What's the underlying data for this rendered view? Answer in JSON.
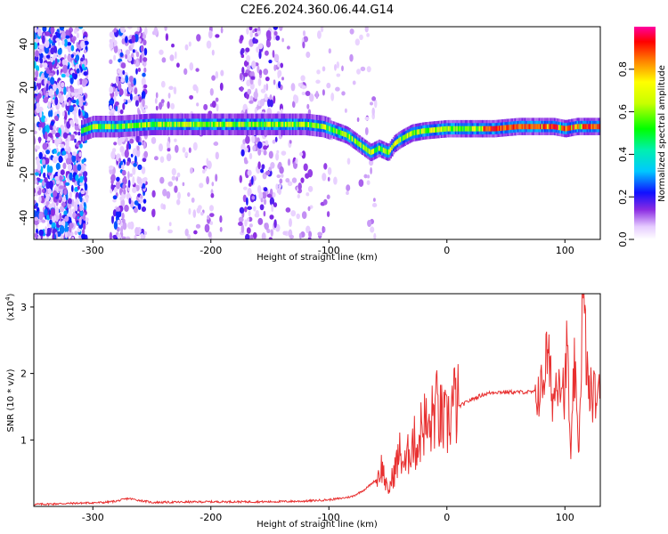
{
  "chart_data": [
    {
      "type": "heatmap",
      "title": "C2E6.2024.360.06.44.G14",
      "xlabel": "Height of straight line (km)",
      "ylabel": "Frequency (Hz)",
      "xlim": [
        -350,
        130
      ],
      "ylim": [
        -50,
        48
      ],
      "xticks": [
        -300,
        -200,
        -100,
        0,
        100
      ],
      "yticks": [
        40,
        20,
        0,
        -20,
        -40
      ],
      "xtick_labels": [
        "-300",
        "-200",
        "-100",
        "0",
        "100"
      ],
      "ytick_labels": [
        "40",
        "20",
        "0",
        "-20",
        "-40"
      ],
      "colorbar": {
        "label": "Normalized spectral amplitude",
        "range": [
          0,
          1
        ],
        "ticks": [
          0.0,
          0.2,
          0.4,
          0.6,
          0.8
        ],
        "tick_labels": [
          "0.0",
          "0.2",
          "0.4",
          "0.6",
          "0.8"
        ]
      },
      "ridge": {
        "x": [
          -310,
          -300,
          -280,
          -250,
          -200,
          -150,
          -120,
          -105,
          -95,
          -85,
          -75,
          -65,
          -58,
          -50,
          -45,
          -40,
          -30,
          -20,
          0,
          20,
          40,
          60,
          80,
          90,
          100,
          110,
          130
        ],
        "freq": [
          0,
          2,
          2,
          3,
          3,
          3,
          3,
          2,
          0,
          -2,
          -6,
          -10,
          -8,
          -10,
          -6,
          -4,
          -1,
          0,
          1,
          1,
          1,
          2,
          2,
          2,
          1,
          2,
          2
        ]
      }
    },
    {
      "type": "line",
      "xlabel": "Height of straight line (km)",
      "ylabel": "SNR (10 * v/v)",
      "scale_label": "(x10",
      "scale_exponent": "4",
      "scale_suffix": ")",
      "color": "#e83030",
      "xlim": [
        -350,
        130
      ],
      "ylim": [
        0,
        3.2
      ],
      "xticks": [
        -300,
        -200,
        -100,
        0,
        100
      ],
      "yticks": [
        1,
        2,
        3
      ],
      "xtick_labels": [
        "-300",
        "-200",
        "-100",
        "0",
        "100"
      ],
      "ytick_labels": [
        "1",
        "2",
        "3"
      ],
      "x": [
        -350,
        -330,
        -310,
        -290,
        -280,
        -270,
        -250,
        -200,
        -150,
        -120,
        -100,
        -90,
        -80,
        -70,
        -60,
        -55,
        -50,
        -45,
        -40,
        -35,
        -30,
        -25,
        -20,
        -15,
        -10,
        -5,
        0,
        5,
        10,
        20,
        30,
        40,
        50,
        60,
        70,
        75,
        80,
        85,
        90,
        95,
        100,
        102,
        105,
        108,
        110,
        112,
        115,
        120,
        130
      ],
      "y": [
        0.03,
        0.04,
        0.05,
        0.06,
        0.08,
        0.12,
        0.06,
        0.07,
        0.07,
        0.08,
        0.1,
        0.12,
        0.15,
        0.25,
        0.4,
        0.6,
        0.2,
        0.5,
        0.8,
        0.6,
        1.0,
        0.9,
        1.3,
        1.1,
        1.5,
        1.3,
        1.2,
        1.55,
        1.5,
        1.6,
        1.68,
        1.72,
        1.72,
        1.72,
        1.72,
        1.72,
        1.75,
        2.3,
        1.6,
        2.1,
        1.7,
        2.5,
        0.6,
        2.2,
        1.3,
        0.9,
        3.2,
        1.7,
        1.65
      ]
    }
  ]
}
